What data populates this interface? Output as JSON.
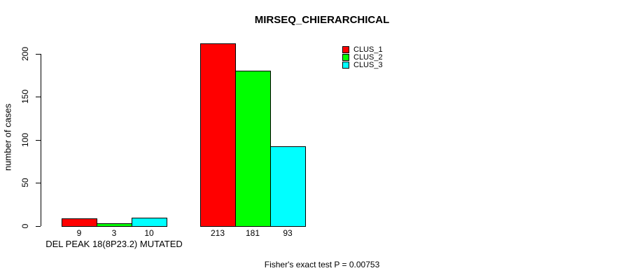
{
  "chart_data": {
    "type": "bar",
    "title": "MIRSEQ_CHIERARCHICAL",
    "ylabel": "number of cases",
    "annotation": "Fisher's exact test P = 0.00753",
    "yticks": [
      0,
      50,
      100,
      150,
      200
    ],
    "ylim": [
      0,
      215
    ],
    "grid": false,
    "legend_position": "top-right",
    "series": [
      {
        "name": "CLUS_1",
        "color": "#FF0000"
      },
      {
        "name": "CLUS_2",
        "color": "#00FF00"
      },
      {
        "name": "CLUS_3",
        "color": "#00FFFF"
      }
    ],
    "groups": [
      {
        "label": "DEL PEAK 18(8P23.2) MUTATED",
        "values": [
          9,
          3,
          10
        ]
      },
      {
        "label": "",
        "values": [
          213,
          181,
          93
        ]
      }
    ]
  }
}
